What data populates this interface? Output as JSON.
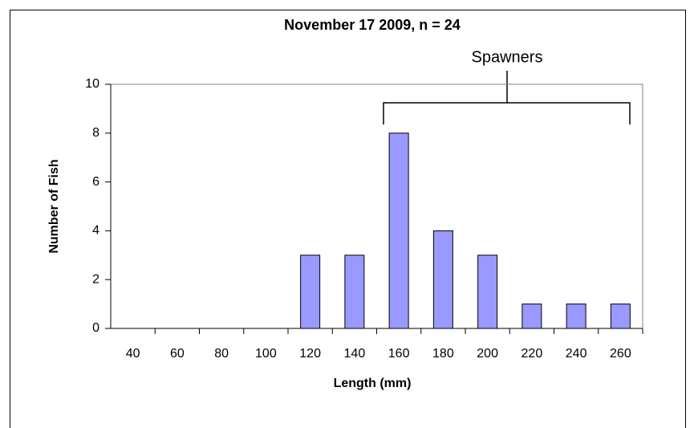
{
  "chart_data": {
    "type": "bar",
    "title": "November 17 2009, n = 24",
    "x_label": "Length (mm)",
    "y_label": "Number of Fish",
    "annotation": "Spawners",
    "categories": [
      "40",
      "60",
      "80",
      "100",
      "120",
      "140",
      "160",
      "180",
      "200",
      "220",
      "240",
      "260"
    ],
    "values": [
      0,
      0,
      0,
      0,
      3,
      3,
      8,
      4,
      3,
      1,
      1,
      1
    ],
    "color": "#9999ff",
    "ylim": [
      0,
      10
    ],
    "yticks": [
      0,
      2,
      4,
      6,
      8,
      10
    ],
    "grid": false
  }
}
